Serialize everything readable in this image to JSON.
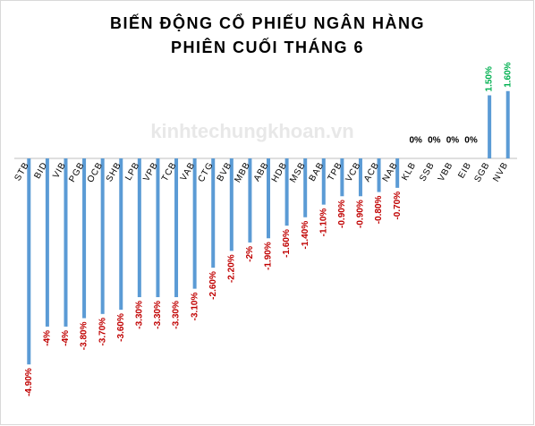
{
  "chart_data": {
    "type": "bar",
    "title_lines": [
      "BIẾN ĐỘNG CỔ PHIẾU NGÂN HÀNG",
      "PHIÊN CUỐI THÁNG 6"
    ],
    "watermark": "kinhtechungkhoan.vn",
    "categories": [
      "STB",
      "BID",
      "VIB",
      "PGB",
      "OCB",
      "SHB",
      "LPB",
      "VPB",
      "TCB",
      "VAB",
      "CTG",
      "BVB",
      "MBB",
      "ABB",
      "HDB",
      "MSB",
      "BAB",
      "TPB",
      "VCB",
      "ACB",
      "NAB",
      "KLB",
      "SSB",
      "VBB",
      "EIB",
      "SGB",
      "NVB"
    ],
    "values": [
      -4.9,
      -4,
      -4,
      -3.8,
      -3.7,
      -3.6,
      -3.3,
      -3.3,
      -3.3,
      -3.1,
      -2.6,
      -2.2,
      -2,
      -1.9,
      -1.6,
      -1.4,
      -1.1,
      -0.9,
      -0.9,
      -0.8,
      -0.7,
      0,
      0,
      0,
      0,
      1.5,
      1.6
    ],
    "value_labels": [
      "-4.90%",
      "-4%",
      "-4%",
      "-3.80%",
      "-3.70%",
      "-3.60%",
      "-3.30%",
      "-3.30%",
      "-3.30%",
      "-3.10%",
      "-2.60%",
      "-2.20%",
      "-2%",
      "-1.90%",
      "-1.60%",
      "-1.40%",
      "-1.10%",
      "-0.90%",
      "-0.90%",
      "-0.80%",
      "-0.70%",
      "0%",
      "0%",
      "0%",
      "0%",
      "1.50%",
      "1.60%"
    ],
    "color": "#5b9bd5",
    "negative_label_color": "#c00000",
    "positive_label_color": "#00b050",
    "zero_label_color": "#000000",
    "ylim": [
      -5.3,
      2
    ]
  }
}
